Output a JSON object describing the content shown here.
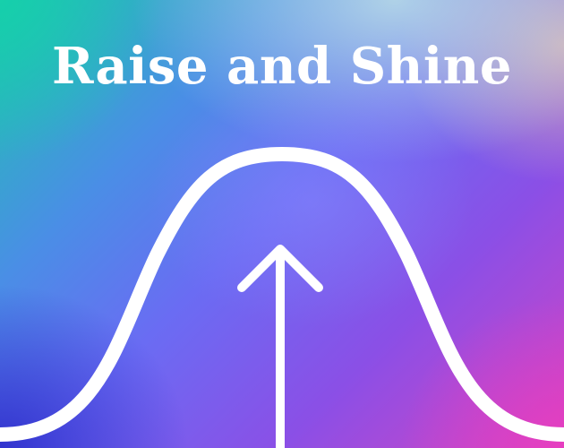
{
  "poster": {
    "headline": "Raise and Shine",
    "colors": {
      "foreground": "#ffffff",
      "gradient_top_left": "#1ec3b0",
      "gradient_center": "#6a6cf3",
      "gradient_bottom_right": "#d444c4"
    },
    "graphics": {
      "curve": "bell-curve",
      "arrow": "arrow-up-icon"
    }
  }
}
